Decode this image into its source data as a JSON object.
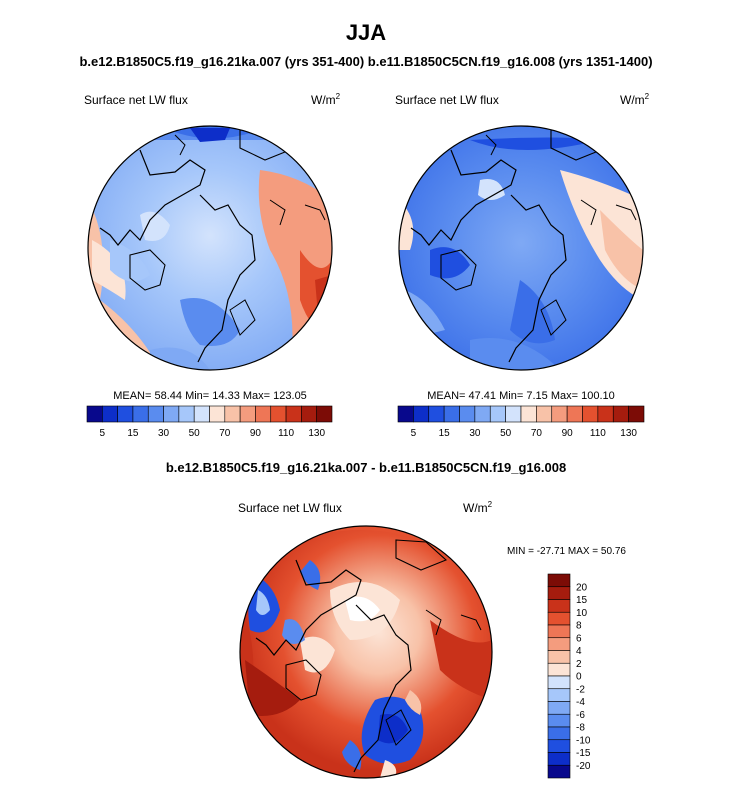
{
  "title": "JJA",
  "header": "b.e12.B1850C5.f19_g16.21ka.007 (yrs 351-400) b.e11.B1850C5CN.f19_g16.008 (yrs 1351-1400)",
  "colors": {
    "seq": [
      "#08088c",
      "#0d2ec9",
      "#1f4fe0",
      "#3a6ee8",
      "#5a8cef",
      "#7fa9f4",
      "#a6c7fa",
      "#d3e3fc",
      "#fce4d6",
      "#f8c2a8",
      "#f49c7e",
      "#ee7656",
      "#e4512f",
      "#c9321a",
      "#a51c0e",
      "#7c0c06"
    ],
    "div": [
      "#08088c",
      "#0d2ec9",
      "#1f4fe0",
      "#3a6ee8",
      "#5a8cef",
      "#7fa9f4",
      "#a6c7fa",
      "#d3e3fc",
      "#fce4d6",
      "#f8c2a8",
      "#f49c7e",
      "#ee7656",
      "#e4512f",
      "#c9321a",
      "#a51c0e",
      "#7c0c06"
    ]
  },
  "chart_data": [
    {
      "type": "heatmap",
      "projection": "polar stereographic (north)",
      "title": "Surface net LW flux",
      "units": "W/m",
      "units_sup": "2",
      "stats": {
        "mean_label": "MEAN=",
        "mean": "58.44",
        "min_label": "Min=",
        "min": "14.33",
        "max_label": "Max=",
        "max": "123.05"
      },
      "colorbar": {
        "orientation": "horizontal",
        "labels": [
          "5",
          "15",
          "30",
          "50",
          "70",
          "90",
          "110",
          "130"
        ]
      }
    },
    {
      "type": "heatmap",
      "projection": "polar stereographic (north)",
      "title": "Surface net LW flux",
      "units": "W/m",
      "units_sup": "2",
      "stats": {
        "mean_label": "MEAN=",
        "mean": "47.41",
        "min_label": "Min=",
        "min": "7.15",
        "max_label": "Max=",
        "max": "100.10"
      },
      "colorbar": {
        "orientation": "horizontal",
        "labels": [
          "5",
          "15",
          "30",
          "50",
          "70",
          "90",
          "110",
          "130"
        ]
      }
    },
    {
      "type": "heatmap",
      "projection": "polar stereographic (north)",
      "heading": "b.e12.B1850C5.f19_g16.21ka.007 - b.e11.B1850C5CN.f19_g16.008",
      "title": "Surface net LW flux",
      "units": "W/m",
      "units_sup": "2",
      "stats_text": "MIN = -27.71 MAX =  50.76",
      "colorbar": {
        "orientation": "vertical",
        "labels": [
          "20",
          "15",
          "10",
          "8",
          "6",
          "4",
          "2",
          "0",
          "-2",
          "-4",
          "-6",
          "-8",
          "-10",
          "-15",
          "-20"
        ]
      }
    }
  ]
}
